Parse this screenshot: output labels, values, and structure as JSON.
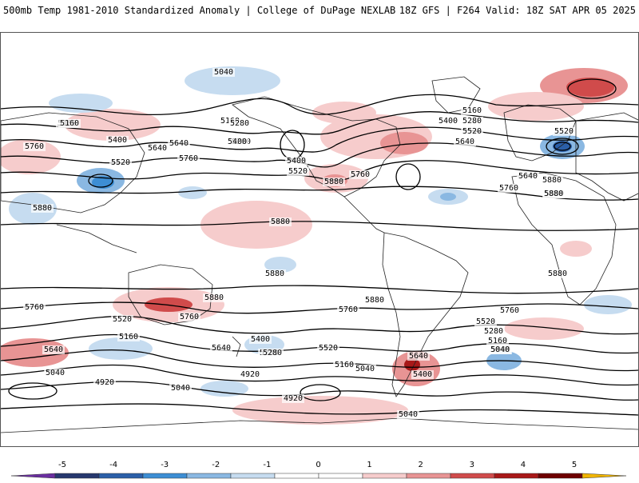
{
  "header": {
    "title": "500mb Temp 1981-2010 Standardized Anomaly | College of DuPage NEXLAB",
    "run_info": "18Z GFS | F264 Valid: 18Z SAT APR 05 2025"
  },
  "map": {
    "contour_labels": [
      "5040",
      "5160",
      "5160",
      "5280",
      "5400",
      "5520",
      "5640",
      "5760",
      "5400",
      "5520",
      "5880",
      "5760",
      "5160",
      "5280",
      "5400",
      "5520",
      "5640",
      "5880",
      "5520",
      "5640",
      "5760",
      "5880",
      "5880",
      "5880",
      "5880",
      "5880",
      "5760",
      "5880",
      "5760",
      "5760",
      "5520",
      "5160",
      "5640",
      "5640",
      "5280",
      "5040",
      "4920",
      "5040",
      "5400",
      "5280",
      "5520",
      "4920",
      "4920",
      "5040",
      "5160",
      "5040",
      "5640",
      "5400",
      "5040",
      "5760",
      "5520",
      "5280",
      "5160",
      "5040",
      "5880",
      "5880",
      "5760",
      "5640",
      "5400",
      "5160",
      "5280"
    ]
  },
  "colorbar": {
    "ticks": [
      "-5",
      "-4",
      "-3",
      "-2",
      "-1",
      "0",
      "1",
      "2",
      "3",
      "4",
      "5"
    ],
    "colors": [
      "#6a2ea0",
      "#26386e",
      "#2b5fa8",
      "#3d8ed4",
      "#8ab8e2",
      "#c6dcf0",
      "#ffffff",
      "#ffffff",
      "#f6cccc",
      "#e89494",
      "#d04b4b",
      "#a81818",
      "#6e0000",
      "#f0b400"
    ]
  }
}
